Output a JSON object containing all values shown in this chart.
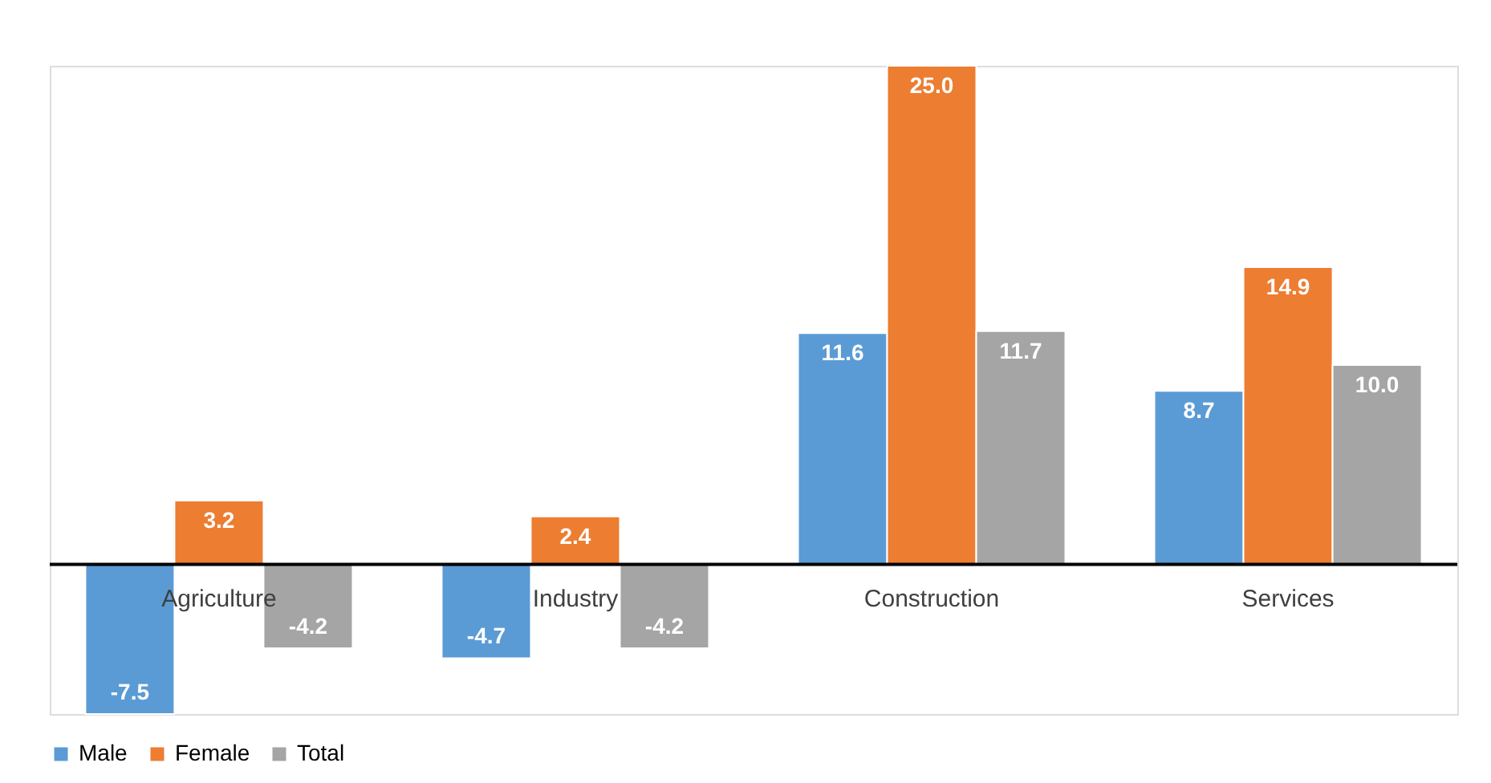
{
  "chart_data": {
    "type": "bar",
    "categories": [
      "Agriculture",
      "Industry",
      "Construction",
      "Services"
    ],
    "series": [
      {
        "name": "Male",
        "color": "#5b9bd5",
        "values": [
          -7.5,
          -4.7,
          11.6,
          8.7
        ],
        "value_labels": [
          "-7.5",
          "-4.7",
          "11.6",
          "8.7"
        ]
      },
      {
        "name": "Female",
        "color": "#ed7d31",
        "values": [
          3.2,
          2.4,
          25.0,
          14.9
        ],
        "value_labels": [
          "3.2",
          "2.4",
          "25.0",
          "14.9"
        ]
      },
      {
        "name": "Total",
        "color": "#a5a5a5",
        "values": [
          -4.2,
          -4.2,
          11.7,
          10.0
        ],
        "value_labels": [
          "-4.2",
          "-4.2",
          "11.7",
          "10.0"
        ]
      }
    ],
    "legend": "bottom",
    "grid": false
  }
}
